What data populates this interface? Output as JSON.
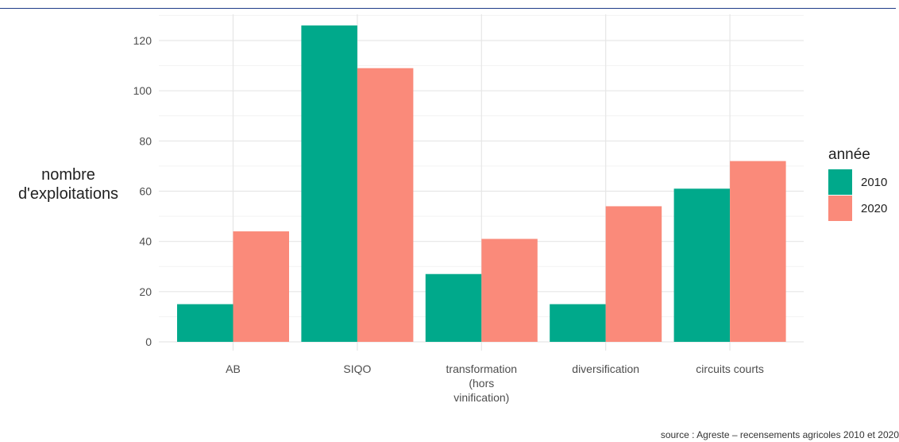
{
  "chart_data": {
    "type": "bar",
    "categories": [
      [
        "AB"
      ],
      [
        "SIQO"
      ],
      [
        "transformation",
        "(hors",
        "vinification)"
      ],
      [
        "diversification"
      ],
      [
        "circuits courts"
      ]
    ],
    "series": [
      {
        "name": "2010",
        "color": "#00a98b",
        "values": [
          15,
          126,
          27,
          15,
          61
        ]
      },
      {
        "name": "2020",
        "color": "#fa8a7a",
        "values": [
          44,
          109,
          41,
          54,
          72
        ]
      }
    ],
    "ylabel": [
      "nombre",
      "d'exploitations"
    ],
    "ylim": [
      0,
      130
    ],
    "yticks": [
      0,
      20,
      40,
      60,
      80,
      100,
      120
    ],
    "legend": {
      "title": "année",
      "placement": "right"
    },
    "grid": true,
    "source": "source : Agreste – recensements agricoles 2010 et 2020"
  }
}
